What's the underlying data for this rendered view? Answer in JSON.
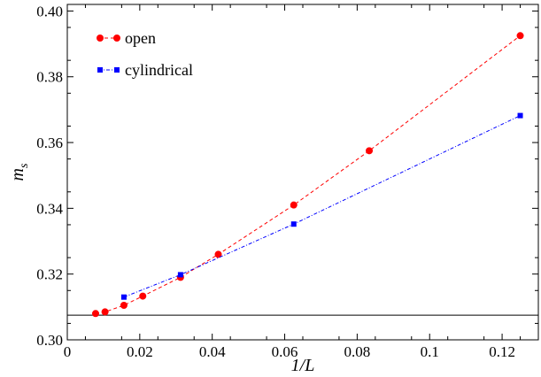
{
  "chart_data": {
    "type": "line",
    "xlabel": "1/L",
    "ylabel": "m_s",
    "ylabel_main": "m",
    "ylabel_sub": "s",
    "xlim": [
      0,
      0.13
    ],
    "ylim": [
      0.3,
      0.402
    ],
    "x_ticks": [
      0,
      0.02,
      0.04,
      0.06,
      0.08,
      0.1,
      0.12
    ],
    "x_tick_labels": [
      "0",
      "0.02",
      "0.04",
      "0.06",
      "0.08",
      "0.1",
      "0.12"
    ],
    "y_ticks": [
      0.3,
      0.32,
      0.34,
      0.36,
      0.38,
      0.4
    ],
    "y_tick_labels": [
      "0.30",
      "0.32",
      "0.34",
      "0.36",
      "0.38",
      "0.40"
    ],
    "grid": false,
    "legend_position": "top-left",
    "reference_line": {
      "y": 0.3075,
      "color": "#000000"
    },
    "series": [
      {
        "name": "open",
        "color": "#ff0000",
        "marker": "circle",
        "line_style": "dashed",
        "x": [
          0.0078125,
          0.0104167,
          0.015625,
          0.0208333,
          0.03125,
          0.0416667,
          0.0625,
          0.0833333,
          0.125
        ],
        "y": [
          0.308,
          0.3085,
          0.3105,
          0.3133,
          0.319,
          0.326,
          0.341,
          0.3575,
          0.3925
        ]
      },
      {
        "name": "cylindrical",
        "color": "#0000ff",
        "marker": "square",
        "line_style": "dashdot",
        "x": [
          0.015625,
          0.03125,
          0.0625,
          0.125
        ],
        "y": [
          0.313,
          0.3198,
          0.3352,
          0.3682
        ]
      }
    ]
  }
}
